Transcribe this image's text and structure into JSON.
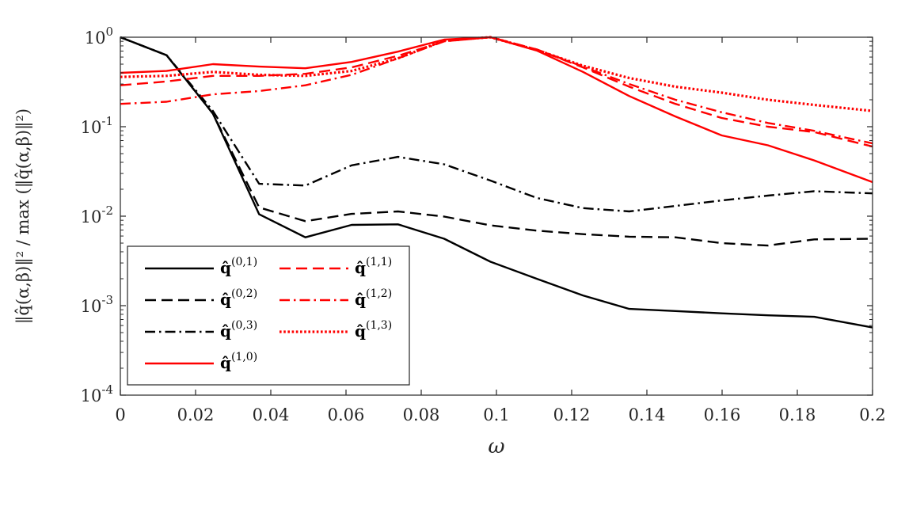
{
  "chart_data": {
    "type": "line",
    "title": "",
    "xlabel": "ω",
    "ylabel": "‖q̂(α,β)‖² / max (‖q̂(α,β)‖²)",
    "xlim": [
      0,
      0.2
    ],
    "ylim": [
      0.0001,
      1
    ],
    "yscale": "log",
    "grid": false,
    "x_ticks": [
      0,
      0.02,
      0.04,
      0.06,
      0.08,
      0.1,
      0.12,
      0.14,
      0.16,
      0.18,
      0.2
    ],
    "x_tick_labels": [
      "0",
      "0.02",
      "0.04",
      "0.06",
      "0.08",
      "0.1",
      "0.12",
      "0.14",
      "0.16",
      "0.18",
      "0.2"
    ],
    "y_ticks": [
      {
        "value": 1,
        "mantissa": "10",
        "exponent": "0"
      },
      {
        "value": 0.1,
        "mantissa": "10",
        "exponent": "-1"
      },
      {
        "value": 0.01,
        "mantissa": "10",
        "exponent": "-2"
      },
      {
        "value": 0.001,
        "mantissa": "10",
        "exponent": "-3"
      },
      {
        "value": 0.0001,
        "mantissa": "10",
        "exponent": "-4"
      }
    ],
    "legend_position": "bottom-left",
    "x": [
      0,
      0.0123,
      0.0246,
      0.0369,
      0.0492,
      0.0615,
      0.0738,
      0.0861,
      0.0984,
      0.1107,
      0.123,
      0.1353,
      0.1476,
      0.1599,
      0.1722,
      0.1845,
      0.2
    ],
    "series": [
      {
        "name": "q̂(0,1)",
        "base": "q̂",
        "sup": "(0,1)",
        "color": "#000000",
        "dash": "solid",
        "values": [
          1.0,
          0.63,
          0.14,
          0.0105,
          0.0058,
          0.008,
          0.0081,
          0.0056,
          0.0031,
          0.002,
          0.0013,
          0.00092,
          0.00087,
          0.00082,
          0.00078,
          0.00075,
          0.00057
        ]
      },
      {
        "name": "q̂(0,2)",
        "base": "q̂",
        "sup": "(0,2)",
        "color": "#000000",
        "dash": "dash",
        "values": [
          1.0,
          0.63,
          0.14,
          0.0125,
          0.0088,
          0.0106,
          0.0113,
          0.0099,
          0.0079,
          0.0069,
          0.0063,
          0.0059,
          0.0058,
          0.005,
          0.0047,
          0.0055,
          0.0056
        ]
      },
      {
        "name": "q̂(0,3)",
        "base": "q̂",
        "sup": "(0,3)",
        "color": "#000000",
        "dash": "dashdot",
        "values": [
          1.0,
          0.63,
          0.15,
          0.023,
          0.022,
          0.037,
          0.046,
          0.038,
          0.025,
          0.016,
          0.0123,
          0.0113,
          0.013,
          0.015,
          0.017,
          0.019,
          0.018
        ]
      },
      {
        "name": "q̂(1,0)",
        "base": "q̂",
        "sup": "(1,0)",
        "color": "#ff0000",
        "dash": "solid",
        "values": [
          0.4,
          0.42,
          0.5,
          0.47,
          0.45,
          0.53,
          0.69,
          0.94,
          1.0,
          0.71,
          0.41,
          0.22,
          0.13,
          0.08,
          0.062,
          0.042,
          0.024
        ]
      },
      {
        "name": "q̂(1,1)",
        "base": "q̂",
        "sup": "(1,1)",
        "color": "#ff0000",
        "dash": "dash",
        "values": [
          0.29,
          0.32,
          0.37,
          0.37,
          0.39,
          0.46,
          0.62,
          0.9,
          1.0,
          0.73,
          0.46,
          0.28,
          0.18,
          0.125,
          0.1,
          0.087,
          0.06
        ]
      },
      {
        "name": "q̂(1,2)",
        "base": "q̂",
        "sup": "(1,2)",
        "color": "#ff0000",
        "dash": "dashdot",
        "values": [
          0.18,
          0.19,
          0.23,
          0.25,
          0.29,
          0.38,
          0.58,
          0.9,
          1.0,
          0.73,
          0.47,
          0.3,
          0.2,
          0.145,
          0.11,
          0.09,
          0.065
        ]
      },
      {
        "name": "q̂(1,3)",
        "base": "q̂",
        "sup": "(1,3)",
        "color": "#ff0000",
        "dash": "dot",
        "values": [
          0.36,
          0.37,
          0.41,
          0.38,
          0.37,
          0.42,
          0.58,
          0.92,
          1.0,
          0.72,
          0.48,
          0.35,
          0.28,
          0.24,
          0.2,
          0.175,
          0.15
        ]
      }
    ]
  }
}
